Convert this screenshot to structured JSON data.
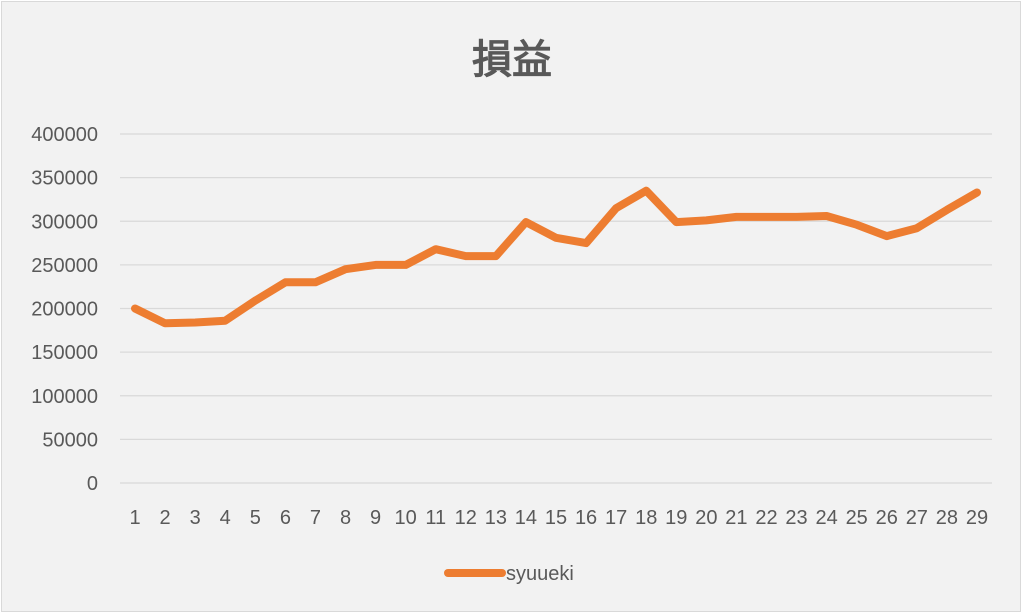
{
  "chart_data": {
    "type": "line",
    "title": "損益",
    "xlabel": "",
    "ylabel": "",
    "categories": [
      "1",
      "2",
      "3",
      "4",
      "5",
      "6",
      "7",
      "8",
      "9",
      "10",
      "11",
      "12",
      "13",
      "14",
      "15",
      "16",
      "17",
      "18",
      "19",
      "20",
      "21",
      "22",
      "23",
      "24",
      "25",
      "26",
      "27",
      "28",
      "29"
    ],
    "y_ticks": [
      "0",
      "50000",
      "100000",
      "150000",
      "200000",
      "250000",
      "300000",
      "350000",
      "400000"
    ],
    "ylim": [
      0,
      400000
    ],
    "grid": true,
    "legend_position": "bottom",
    "series": [
      {
        "name": "syuueki",
        "color": "#ed7d31",
        "values": [
          200000,
          183000,
          184000,
          186000,
          209000,
          230000,
          230000,
          245000,
          250000,
          250000,
          268000,
          260000,
          260000,
          299000,
          281000,
          275000,
          315000,
          335000,
          299000,
          301000,
          305000,
          305000,
          305000,
          306000,
          296000,
          283000,
          292000,
          313000,
          333000
        ]
      }
    ]
  }
}
